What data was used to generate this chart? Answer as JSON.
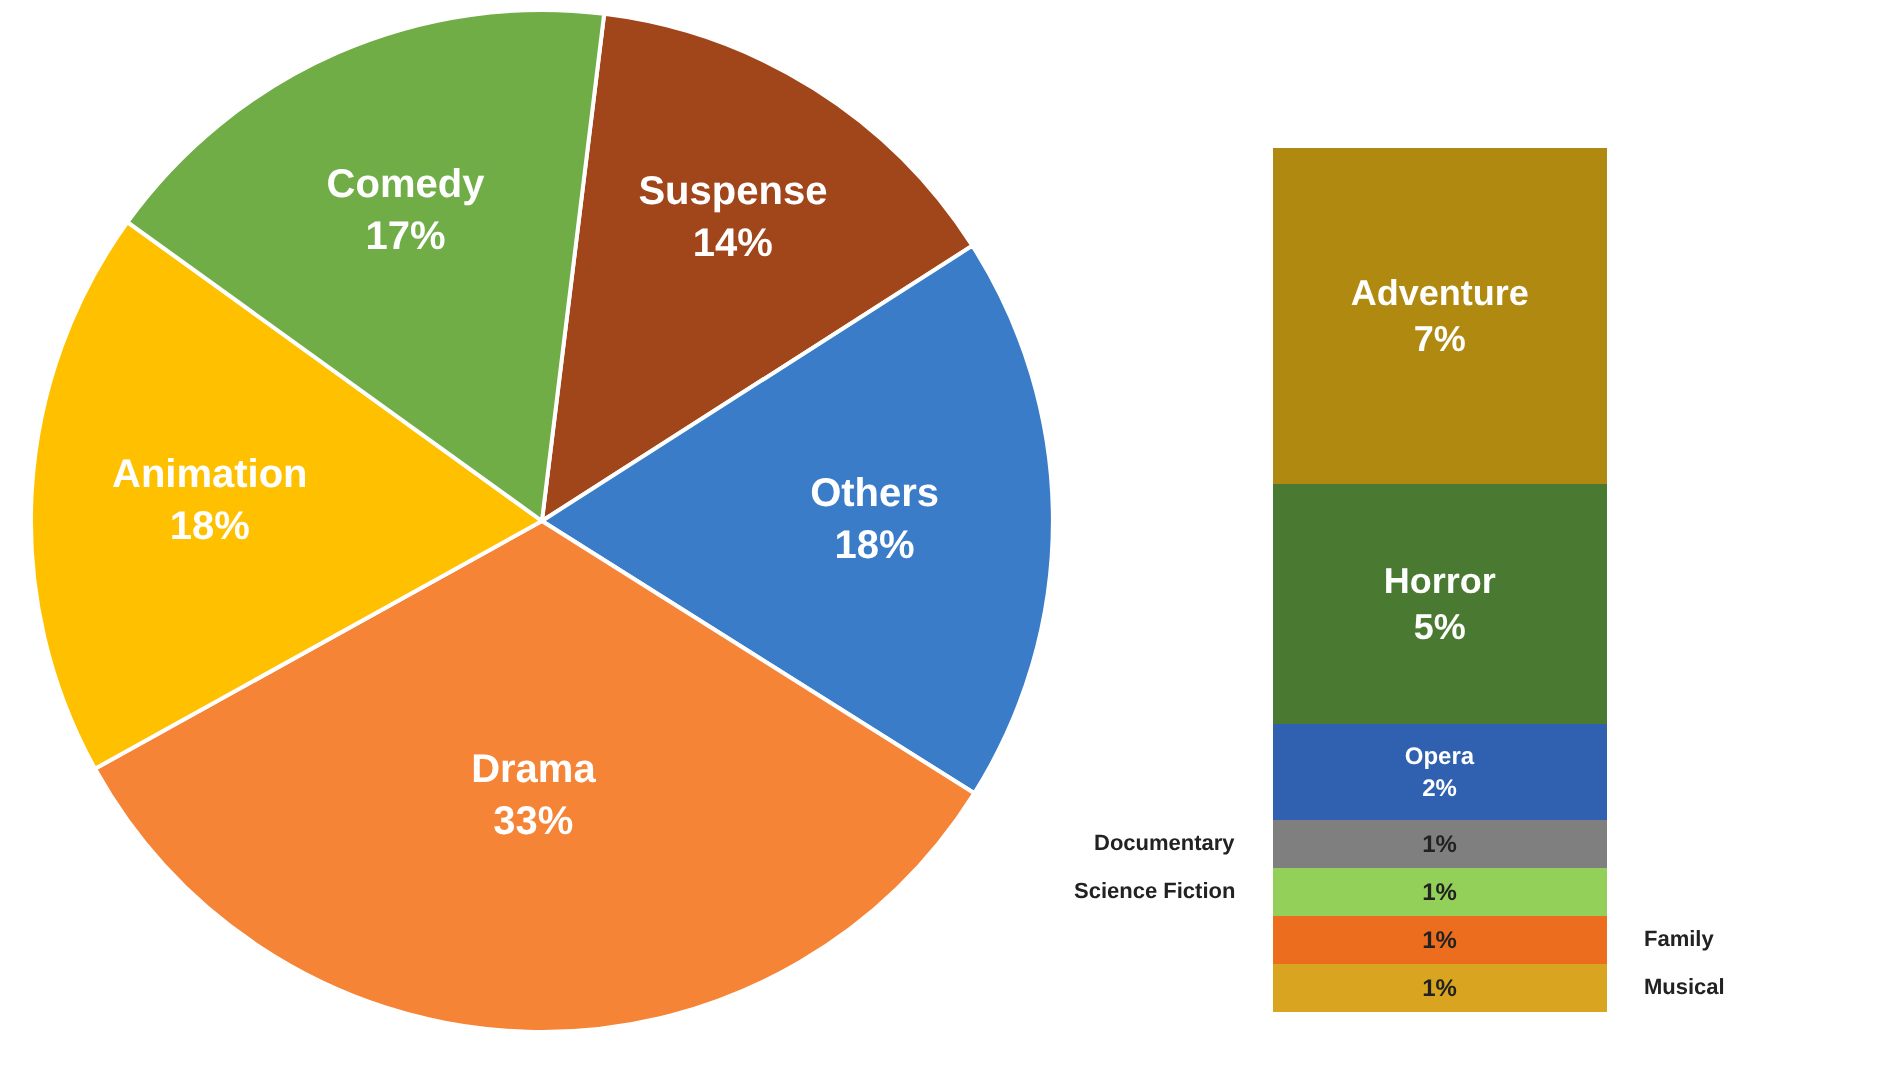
{
  "chart_data": [
    {
      "type": "pie",
      "categories": [
        "Suspense",
        "Others",
        "Drama",
        "Animation",
        "Comedy"
      ],
      "values": [
        14,
        18,
        33,
        18,
        17
      ],
      "value_labels": [
        "14%",
        "18%",
        "33%",
        "18%",
        "17%"
      ],
      "colors": [
        "#a0461a",
        "#3a7cc8",
        "#f58436",
        "#ffc000",
        "#70ad47"
      ],
      "legend": false
    },
    {
      "type": "bar",
      "stacked": true,
      "categories": [
        null
      ],
      "legend": false,
      "series": [
        {
          "name": "Musical",
          "color": "#d9a520",
          "values": [
            1
          ],
          "value_labels": [
            "1%"
          ]
        },
        {
          "name": "Family",
          "color": "#ed6d1f",
          "values": [
            1
          ],
          "value_labels": [
            "1%"
          ]
        },
        {
          "name": "Science Fiction",
          "color": "#92d05a",
          "values": [
            1
          ],
          "value_labels": [
            "1%"
          ]
        },
        {
          "name": "Documentary",
          "color": "#7f7f7f",
          "values": [
            1
          ],
          "value_labels": [
            "1%"
          ]
        },
        {
          "name": "Opera",
          "color": "#3060b0",
          "values": [
            2
          ],
          "value_labels": [
            "2%"
          ]
        },
        {
          "name": "Horror",
          "color": "#4a7a32",
          "values": [
            5
          ],
          "value_labels": [
            "5%"
          ]
        },
        {
          "name": "Adventure",
          "color": "#b08a10",
          "values": [
            7
          ],
          "value_labels": [
            "7%"
          ]
        }
      ]
    }
  ]
}
